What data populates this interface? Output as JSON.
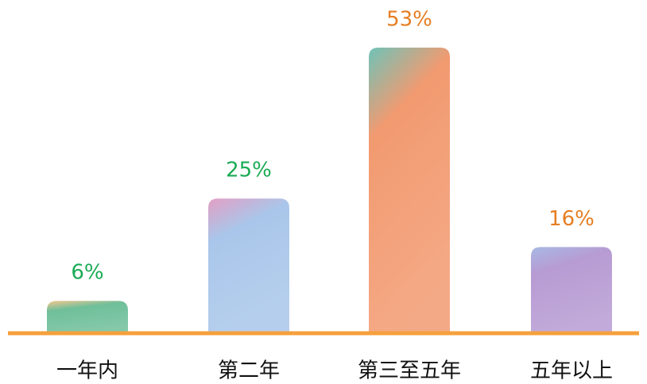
{
  "chart_data": {
    "type": "bar",
    "categories": [
      "一年内",
      "第二年",
      "第三至五年",
      "五年以上"
    ],
    "values": [
      6,
      25,
      53,
      16
    ],
    "value_labels": [
      "6%",
      "25%",
      "53%",
      "16%"
    ],
    "colors": [
      "#6fbf9a",
      "#a9c6ea",
      "#f29a70",
      "#b79bd3"
    ],
    "top_colors": [
      "#f6c78f",
      "#e39fc4",
      "#6fc3b8",
      "#a8b9e4"
    ],
    "label_colors": [
      "#1aab55",
      "#1aab55",
      "#e67e22",
      "#e67e22"
    ]
  }
}
